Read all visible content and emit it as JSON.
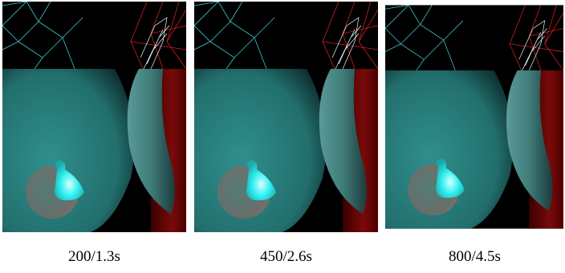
{
  "figure": {
    "captions": [
      "200/1.3s",
      "450/2.6s",
      "800/4.5s"
    ]
  }
}
